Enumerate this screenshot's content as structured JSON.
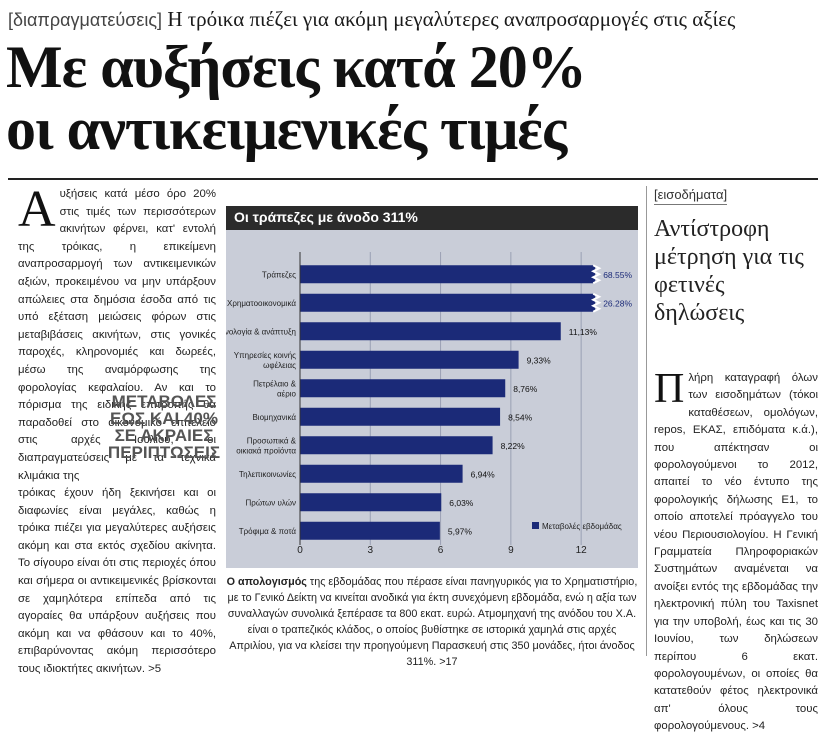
{
  "kicker": {
    "tag": "[διαπραγματεύσεις]",
    "text": "Η τρόικα πιέζει για ακόμη μεγαλύτερες αναπροσαρμογές στις αξίες"
  },
  "headline": {
    "line1": "Με αυξήσεις κατά 20%",
    "line2": "οι αντικειμενικές τιμές"
  },
  "article": {
    "dropcap": "Α",
    "para1": "υξήσεις κατά μέσο όρο 20% στις τιμές των περισσότερων ακινήτων φέρνει, κατ' εντολή της τρόικας, η επικείμενη αναπροσαρμογή των αντικειμενικών αξιών, προκειμένου να μην υπάρξουν απώλειες στα δημόσια έσοδα από τις υπό εξέταση μειώσεις φόρων στις μεταβιβάσεις ακινήτων, στις γονικές παροχές, κληρονομιές και δωρεές, μέσω της αναμόρφωσης της φορολογίας κεφαλαίου. Αν και το πόρισμα της ειδικής επιτροπής θα παραδοθεί στο οικονομικό επιτελείο στις αρχές Ιουλίου, οι διαπραγματεύσεις με τα τεχνικά κλιμάκια της",
    "para2": "τρόικας έχουν ήδη ξεκινήσει και οι διαφωνίες είναι μεγάλες, καθώς η τρόικα πιέζει για μεγαλύτερες αυξήσεις ακόμη και στα εκτός σχεδίου ακίνητα. Το σίγουρο είναι ότι στις περιοχές όπου και σήμερα οι αντικειμενικές βρίσκονται σε χαμηλότερα επίπεδα από τις αγοραίες θα υπάρξουν αυξήσεις που ακόμη και να φθάσουν και το 40%, επιβαρύνοντας ακόμη περισσότερο τους ιδιοκτήτες ακινήτων. >5",
    "pullquote": [
      "ΜΕΤΑΒΟΛΕΣ",
      "ΕΩΣ ΚΑΙ 40%",
      "ΣΕ ΑΚΡΑΙΕΣ",
      "ΠΕΡΙΠΤΩΣΕΙΣ"
    ]
  },
  "chart_data": {
    "type": "bar",
    "title": "Οι τράπεζες με άνοδο 311%",
    "categories": [
      "Τράπεζες",
      "Χρηματοοικονομικά",
      "Τεχνολογία & ανάπτυξη",
      "Υπηρεσίες κοινής ωφέλειας",
      "Πετρέλαιο & αέριο",
      "Βιομηχανικά",
      "Προσωπικά & οικιακά προϊόντα",
      "Τηλεπικοινωνίες",
      "Πρώτων υλών",
      "Τρόφιμα & ποτά"
    ],
    "category_lines": [
      [
        "Τράπεζες"
      ],
      [
        "Χρηματοοικονομικά"
      ],
      [
        "Τεχνολογία & ανάπτυξη"
      ],
      [
        "Υπηρεσίες κοινής",
        "ωφέλειας"
      ],
      [
        "Πετρέλαιο &",
        "αέριο"
      ],
      [
        "Βιομηχανικά"
      ],
      [
        "Προσωπικά &",
        "οικιακά προϊόντα"
      ],
      [
        "Τηλεπικοινωνίες"
      ],
      [
        "Πρώτων υλών"
      ],
      [
        "Τρόφιμα & ποτά"
      ]
    ],
    "values": [
      68.55,
      26.28,
      11.13,
      9.33,
      8.76,
      8.54,
      8.22,
      6.94,
      6.03,
      5.97
    ],
    "value_labels": [
      "68.55%",
      "26.28%",
      "11,13%",
      "9,33%",
      "8,76%",
      "8,54%",
      "8,22%",
      "6,94%",
      "6,03%",
      "5,97%"
    ],
    "broken_axis": [
      true,
      true,
      false,
      false,
      false,
      false,
      false,
      false,
      false,
      false
    ],
    "xlim": [
      0,
      14
    ],
    "xticks": [
      "0",
      "3",
      "6",
      "9",
      "12"
    ],
    "xtick_values": [
      0,
      3,
      6,
      9,
      12
    ],
    "legend": "Μεταβολές εβδομάδας",
    "legend_position": "bottom-right",
    "bar_color": "#1b2a78",
    "background_color": "#c9cdd8"
  },
  "caption": {
    "lead": "Ο απολογισμός",
    "text": " της εβδομάδας που πέρασε είναι πανηγυρικός για το Χρηματιστήριο, με το Γενικό Δείκτη να κινείται ανοδικά για έκτη συνεχόμενη εβδομάδα, ενώ η αξία των συναλλαγών συνολικά ξεπέρασε τα 800 εκατ. ευρώ. Ατμομηχανή της ανόδου του Χ.Α. είναι ο τραπεζικός κλάδος, ο οποίος βυθίστηκε σε ιστορικά χαμηλά στις αρχές Απριλίου, για να κλείσει την προηγούμενη Παρασκευή στις 350 μονάδες, ήτοι άνοδος 311%. >17"
  },
  "sidebar": {
    "tag": "[εισοδήματα]",
    "headline": "Αντίστροφη μέτρηση για τις φετινές δηλώσεις",
    "dropcap": "Π",
    "body": "λήρη καταγραφή όλων των εισοδημάτων (τόκοι καταθέσεων, ομολόγων, repos, ΕΚΑΣ, επιδόματα κ.ά.), που απέκτησαν οι φορολογούμενοι το 2012, απαιτεί το νέο έντυπο της φορολογικής δήλωσης Ε1, το οποίο αποτελεί πρόαγγελο του νέου Περιουσιολογίου. Η Γενική Γραμματεία Πληροφοριακών Συστημάτων αναμένεται να ανοίξει εντός της εβδομάδας την ηλεκτρονική πύλη του Taxisnet για την υποβολή, έως και τις 30 Ιουνίου, των δηλώσεων περίπου 6 εκατ. φορολογουμένων, οι οποίες θα κατατεθούν φέτος ηλεκτρονικά απ' όλους τους φορολογούμενους. >4"
  }
}
